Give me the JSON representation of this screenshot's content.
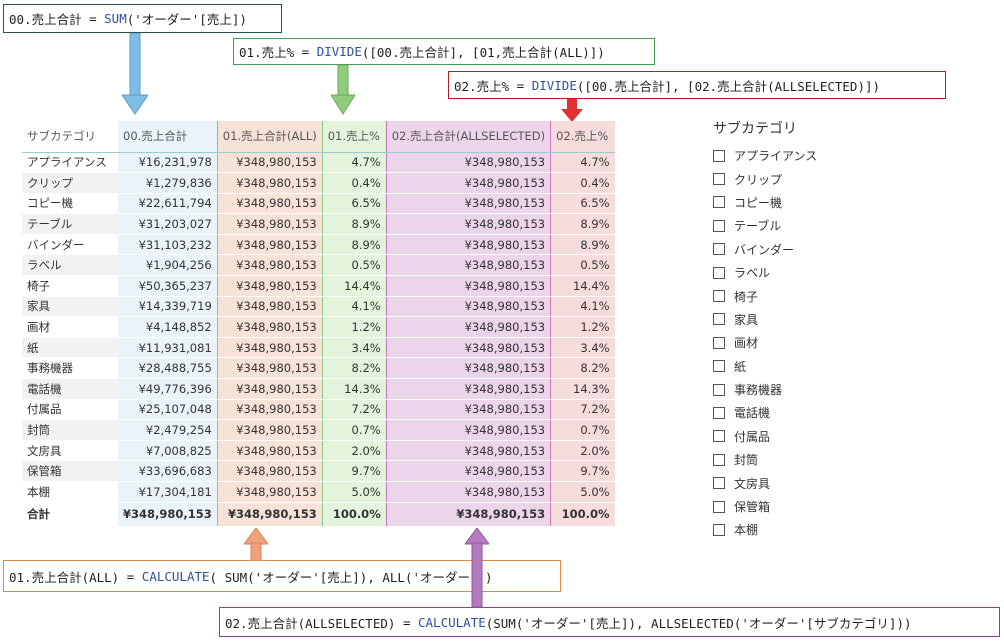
{
  "formulas": {
    "f0": {
      "name": "00.売上合計",
      "eq": " = ",
      "fn": "SUM",
      "args": "('オーダー'[売上])"
    },
    "f1": {
      "name": "01.売上%",
      "eq": " = ",
      "fn": "DIVIDE",
      "args": "([00.売上合計], [01,売上合計(ALL)])"
    },
    "f2": {
      "name": "02.売上%",
      "eq": " = ",
      "fn": "DIVIDE",
      "args": "([00.売上合計], [02.売上合計(ALLSELECTED)])"
    },
    "f3": {
      "name": "01.売上合計(ALL)",
      "eq": " = ",
      "fn": "CALCULATE",
      "args": "( SUM('オーダー'[売上]), ALL('オーダー'))"
    },
    "f4": {
      "name": "02.売上合計(ALLSELECTED)",
      "eq": " = ",
      "fn": "CALCULATE",
      "args": "(SUM('オーダー'[売上]), ALLSELECTED('オーダー'[サブカテゴリ]))"
    }
  },
  "table": {
    "headers": [
      "サブカテゴリ",
      "00.売上合計",
      "01.売上合計(ALL)",
      "01.売上%",
      "02.売上合計(ALLSELECTED)",
      "02.売上%"
    ],
    "rows": [
      [
        "アプライアンス",
        "¥16,231,978",
        "¥348,980,153",
        "4.7%",
        "¥348,980,153",
        "4.7%"
      ],
      [
        "クリップ",
        "¥1,279,836",
        "¥348,980,153",
        "0.4%",
        "¥348,980,153",
        "0.4%"
      ],
      [
        "コピー機",
        "¥22,611,794",
        "¥348,980,153",
        "6.5%",
        "¥348,980,153",
        "6.5%"
      ],
      [
        "テーブル",
        "¥31,203,027",
        "¥348,980,153",
        "8.9%",
        "¥348,980,153",
        "8.9%"
      ],
      [
        "バインダー",
        "¥31,103,232",
        "¥348,980,153",
        "8.9%",
        "¥348,980,153",
        "8.9%"
      ],
      [
        "ラベル",
        "¥1,904,256",
        "¥348,980,153",
        "0.5%",
        "¥348,980,153",
        "0.5%"
      ],
      [
        "椅子",
        "¥50,365,237",
        "¥348,980,153",
        "14.4%",
        "¥348,980,153",
        "14.4%"
      ],
      [
        "家具",
        "¥14,339,719",
        "¥348,980,153",
        "4.1%",
        "¥348,980,153",
        "4.1%"
      ],
      [
        "画材",
        "¥4,148,852",
        "¥348,980,153",
        "1.2%",
        "¥348,980,153",
        "1.2%"
      ],
      [
        "紙",
        "¥11,931,081",
        "¥348,980,153",
        "3.4%",
        "¥348,980,153",
        "3.4%"
      ],
      [
        "事務機器",
        "¥28,488,755",
        "¥348,980,153",
        "8.2%",
        "¥348,980,153",
        "8.2%"
      ],
      [
        "電話機",
        "¥49,776,396",
        "¥348,980,153",
        "14.3%",
        "¥348,980,153",
        "14.3%"
      ],
      [
        "付属品",
        "¥25,107,048",
        "¥348,980,153",
        "7.2%",
        "¥348,980,153",
        "7.2%"
      ],
      [
        "封筒",
        "¥2,479,254",
        "¥348,980,153",
        "0.7%",
        "¥348,980,153",
        "0.7%"
      ],
      [
        "文房具",
        "¥7,008,825",
        "¥348,980,153",
        "2.0%",
        "¥348,980,153",
        "2.0%"
      ],
      [
        "保管箱",
        "¥33,696,683",
        "¥348,980,153",
        "9.7%",
        "¥348,980,153",
        "9.7%"
      ],
      [
        "本棚",
        "¥17,304,181",
        "¥348,980,153",
        "5.0%",
        "¥348,980,153",
        "5.0%"
      ]
    ],
    "total": [
      "合計",
      "¥348,980,153",
      "¥348,980,153",
      "100.0%",
      "¥348,980,153",
      "100.0%"
    ]
  },
  "slicer": {
    "title": "サブカテゴリ",
    "items": [
      "アプライアンス",
      "クリップ",
      "コピー機",
      "テーブル",
      "バインダー",
      "ラベル",
      "椅子",
      "家具",
      "画材",
      "紙",
      "事務機器",
      "電話機",
      "付属品",
      "封筒",
      "文房具",
      "保管箱",
      "本棚"
    ]
  },
  "colors": {
    "arrow0": "#7fbde6",
    "arrow1": "#8fcd7a",
    "arrow2": "#e03030",
    "arrow3": "#f0a07a",
    "arrow4": "#b57abf"
  }
}
